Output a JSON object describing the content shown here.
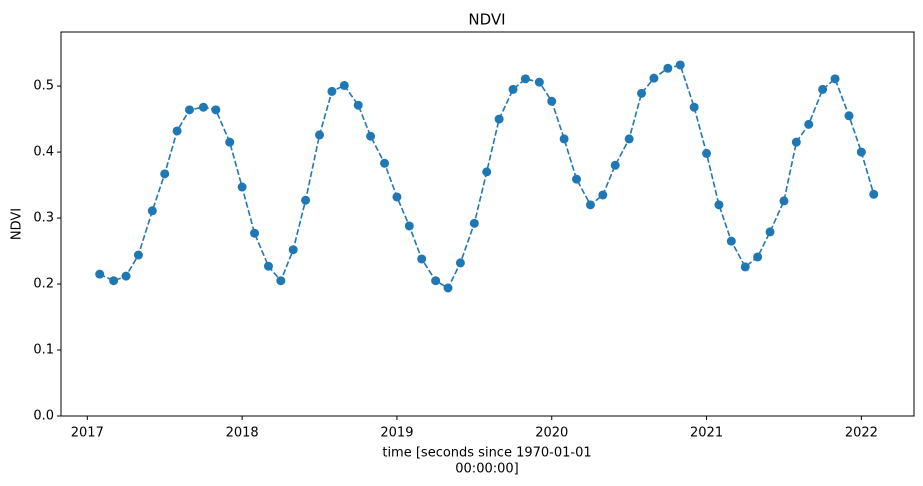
{
  "chart_data": {
    "type": "line",
    "title": "NDVI",
    "xlabel": [
      "time [seconds since 1970-01-01",
      "00:00:00]"
    ],
    "ylabel": "NDVI",
    "x": [
      2017.08,
      2017.17,
      2017.25,
      2017.33,
      2017.42,
      2017.5,
      2017.58,
      2017.66,
      2017.75,
      2017.83,
      2017.92,
      2018.0,
      2018.08,
      2018.17,
      2018.25,
      2018.33,
      2018.41,
      2018.5,
      2018.58,
      2018.66,
      2018.75,
      2018.83,
      2018.92,
      2019.0,
      2019.08,
      2019.16,
      2019.25,
      2019.33,
      2019.41,
      2019.5,
      2019.58,
      2019.66,
      2019.75,
      2019.83,
      2019.92,
      2020.0,
      2020.08,
      2020.16,
      2020.25,
      2020.33,
      2020.41,
      2020.5,
      2020.58,
      2020.66,
      2020.75,
      2020.83,
      2020.92,
      2021.0,
      2021.08,
      2021.16,
      2021.25,
      2021.33,
      2021.41,
      2021.5,
      2021.58,
      2021.66,
      2021.75,
      2021.83,
      2021.92,
      2022.0,
      2022.08
    ],
    "series": [
      {
        "color": "#1f77b4",
        "linestyle": "dashed",
        "marker": "circle",
        "values": [
          0.215,
          0.205,
          0.212,
          0.244,
          0.311,
          0.367,
          0.432,
          0.464,
          0.468,
          0.464,
          0.415,
          0.347,
          0.277,
          0.227,
          0.205,
          0.252,
          0.327,
          0.426,
          0.492,
          0.501,
          0.471,
          0.424,
          0.383,
          0.332,
          0.288,
          0.238,
          0.205,
          0.194,
          0.232,
          0.292,
          0.37,
          0.45,
          0.495,
          0.511,
          0.506,
          0.477,
          0.42,
          0.359,
          0.32,
          0.335,
          0.38,
          0.42,
          0.489,
          0.512,
          0.527,
          0.532,
          0.468,
          0.398,
          0.32,
          0.265,
          0.226,
          0.241,
          0.279,
          0.326,
          0.415,
          0.442,
          0.495,
          0.511,
          0.455,
          0.4,
          0.336
        ]
      }
    ],
    "xlim": [
      2016.83,
      2022.34
    ],
    "xticks": [
      2017,
      2018,
      2019,
      2020,
      2021,
      2022
    ],
    "ylim": [
      0,
      0.582
    ],
    "yticks": [
      {
        "value": 0,
        "label": "0.0"
      },
      0.1,
      0.2,
      0.3,
      0.4,
      0.5
    ],
    "grid": false
  }
}
